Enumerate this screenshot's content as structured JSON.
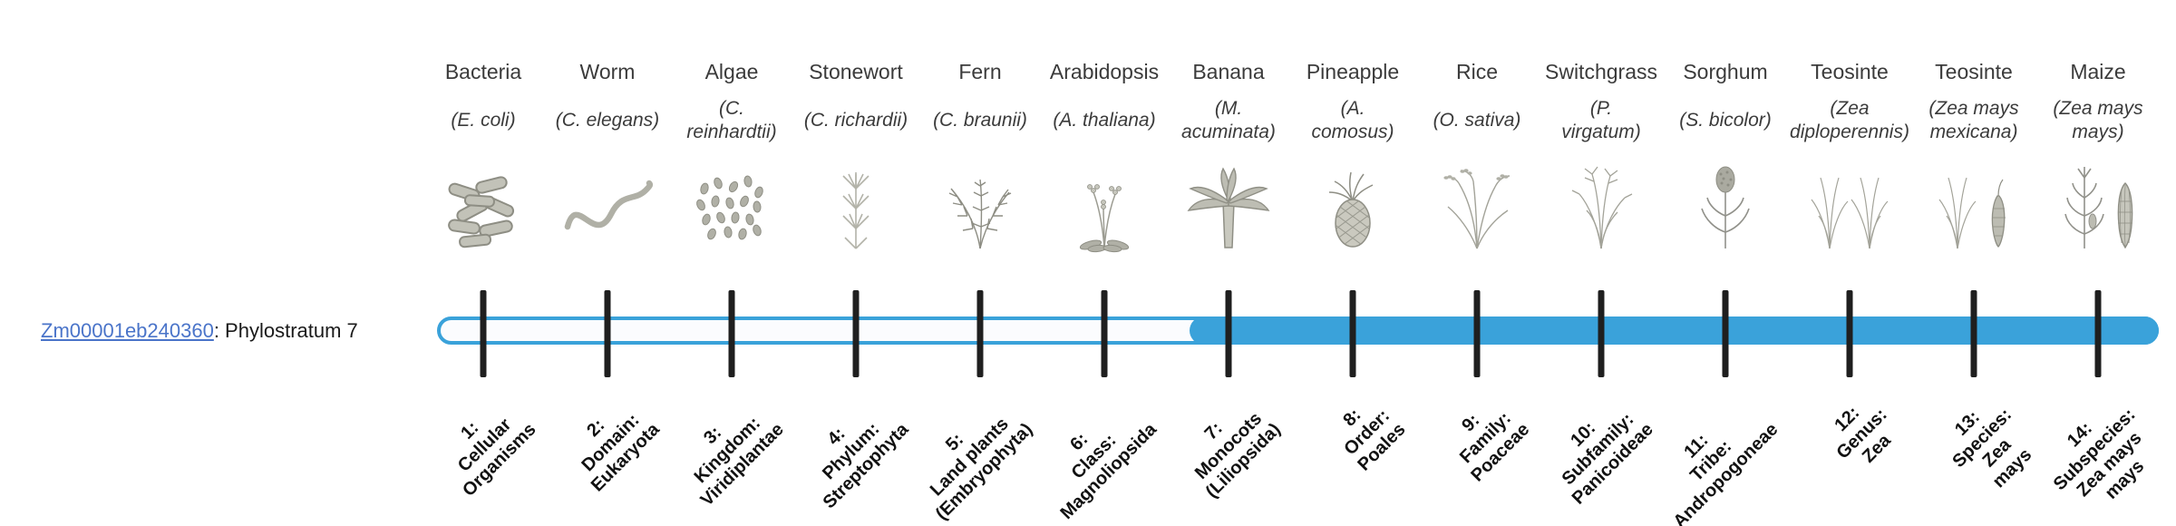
{
  "gene": {
    "id": "Zm00001eb240360",
    "suffix": ": Phylostratum 7",
    "phylostratum": 7
  },
  "colors": {
    "bar_blue": "#3aa2da",
    "link_blue": "#4a74c9",
    "tick_black": "#1f1f1f"
  },
  "species": [
    {
      "name": "Bacteria",
      "sci": "(E. coli)",
      "icon": "bacteria-icon",
      "tick_label": "1:\nCellular\nOrganisms"
    },
    {
      "name": "Worm",
      "sci": "(C. elegans)",
      "icon": "worm-icon",
      "tick_label": "2:\nDomain:\nEukaryota"
    },
    {
      "name": "Algae",
      "sci": "(C.\nreinhardtii)",
      "icon": "algae-icon",
      "tick_label": "3:\nKingdom:\nViridiplantae"
    },
    {
      "name": "Stonewort",
      "sci": "(C. richardii)",
      "icon": "stonewort-icon",
      "tick_label": "4:\nPhylum:\nStreptophyta"
    },
    {
      "name": "Fern",
      "sci": "(C. braunii)",
      "icon": "fern-icon",
      "tick_label": "5:\nLand plants\n(Embryophyta)"
    },
    {
      "name": "Arabidopsis",
      "sci": "(A. thaliana)",
      "icon": "arabidopsis-icon",
      "tick_label": "6:\nClass:\nMagnoliopsida"
    },
    {
      "name": "Banana",
      "sci": "(M.\nacuminata)",
      "icon": "banana-icon",
      "tick_label": "7:\nMonocots\n(Liliopsida)"
    },
    {
      "name": "Pineapple",
      "sci": "(A.\ncomosus)",
      "icon": "pineapple-icon",
      "tick_label": "8:\nOrder:\nPoales"
    },
    {
      "name": "Rice",
      "sci": "(O. sativa)",
      "icon": "rice-icon",
      "tick_label": "9:\nFamily:\nPoaceae"
    },
    {
      "name": "Switchgrass",
      "sci": "(P.\nvirgatum)",
      "icon": "switchgrass-icon",
      "tick_label": "10:\nSubfamily:\nPanicoideae"
    },
    {
      "name": "Sorghum",
      "sci": "(S. bicolor)",
      "icon": "sorghum-icon",
      "tick_label": "11:\nTribe:\nAndropogoneae"
    },
    {
      "name": "Teosinte",
      "sci": "(Zea\ndiploperennis)",
      "icon": "teosinte-pair-icon",
      "tick_label": "12:\nGenus:\nZea"
    },
    {
      "name": "Teosinte",
      "sci": "(Zea mays\nmexicana)",
      "icon": "teosinte-ear-icon",
      "tick_label": "13:\nSpecies:\nZea\nmays"
    },
    {
      "name": "Maize",
      "sci": "(Zea mays\nmays)",
      "icon": "maize-icon",
      "tick_label": "14:\nSubspecies:\nZea mays\nmays"
    }
  ]
}
